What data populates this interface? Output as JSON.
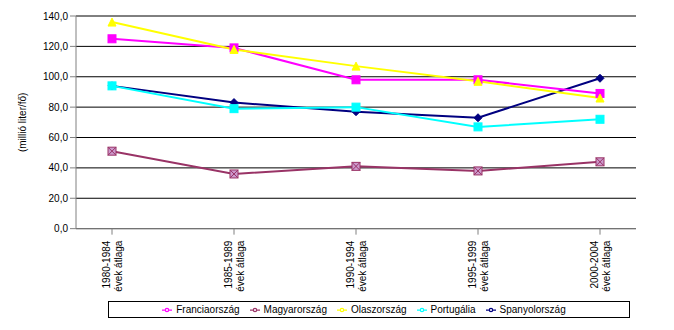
{
  "chart_data": {
    "type": "line",
    "y_label": "(millió liter/fő)",
    "categories": [
      "1980-1984 évek átlaga",
      "1985-1989 évek átlaga",
      "1990-1994 évek átlaga",
      "1995-1999 évek átlaga",
      "2000-2004 évek átlaga"
    ],
    "series": [
      {
        "name": "Spanyolország",
        "color": "#000080",
        "marker": "diamond",
        "values": [
          94,
          83,
          77,
          73,
          99
        ]
      },
      {
        "name": "Franciaország",
        "color": "#ff00ff",
        "marker": "square",
        "values": [
          125,
          119,
          98,
          98,
          89
        ]
      },
      {
        "name": "Olaszország",
        "color": "#ffff00",
        "marker": "triangle",
        "values": [
          136,
          118,
          107,
          97,
          86
        ]
      },
      {
        "name": "Portugália",
        "color": "#00ffff",
        "marker": "square",
        "values": [
          94,
          79,
          80,
          67,
          72
        ]
      },
      {
        "name": "Magyarország",
        "color": "#993366",
        "marker": "x",
        "values": [
          51,
          36,
          41,
          38,
          44
        ]
      }
    ],
    "ylim": [
      0,
      140
    ],
    "yticks": [
      {
        "value": 0,
        "label": "0,0"
      },
      {
        "value": 20,
        "label": "20,0"
      },
      {
        "value": 40,
        "label": "40,0"
      },
      {
        "value": 60,
        "label": "60,0"
      },
      {
        "value": 80,
        "label": "80,0"
      },
      {
        "value": 100,
        "label": "100,0"
      },
      {
        "value": 120,
        "label": "120,0"
      },
      {
        "value": 140,
        "label": "140,0"
      }
    ],
    "grid": true,
    "legend": "bottom"
  }
}
